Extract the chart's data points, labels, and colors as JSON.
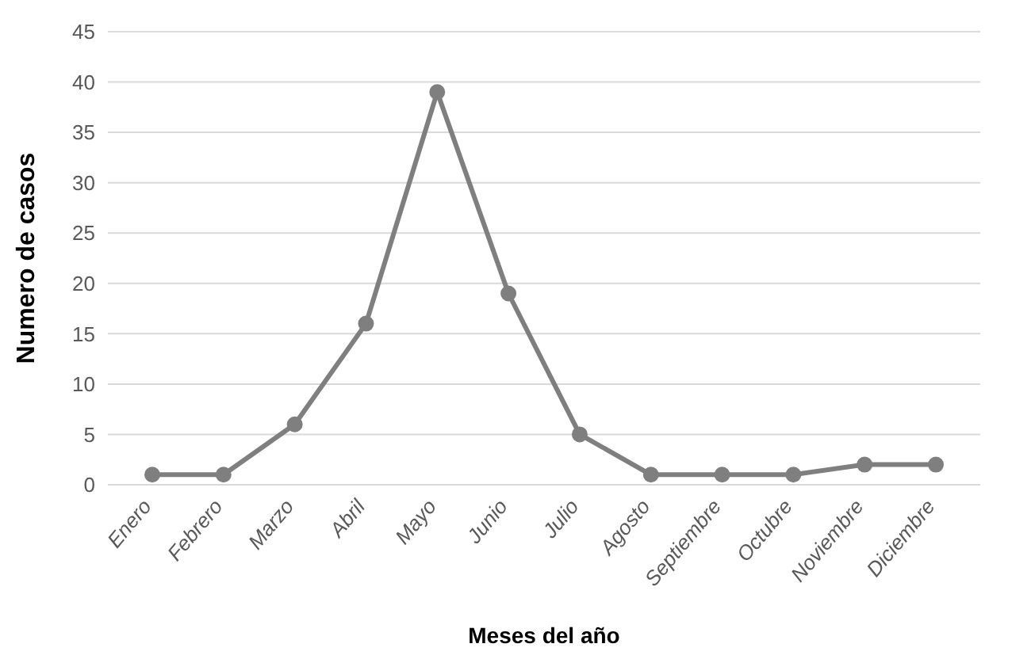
{
  "chart_data": {
    "type": "line",
    "xlabel": "Meses del año",
    "ylabel": "Numero de casos",
    "categories": [
      "Enero",
      "Febrero",
      "Marzo",
      "Abril",
      "Mayo",
      "Junio",
      "Julio",
      "Agosto",
      "Septiembre",
      "Octubre",
      "Noviembre",
      "Diciembre"
    ],
    "series": [
      {
        "color": "#7f7f7f",
        "values": [
          1,
          1,
          6,
          16,
          39,
          19,
          5,
          1,
          1,
          1,
          2,
          2
        ]
      }
    ],
    "ylim": [
      0,
      45
    ],
    "yticks": [
      0,
      5,
      10,
      15,
      20,
      25,
      30,
      35,
      40,
      45
    ],
    "grid": "y",
    "marker": "circle",
    "line_style": "solid"
  }
}
